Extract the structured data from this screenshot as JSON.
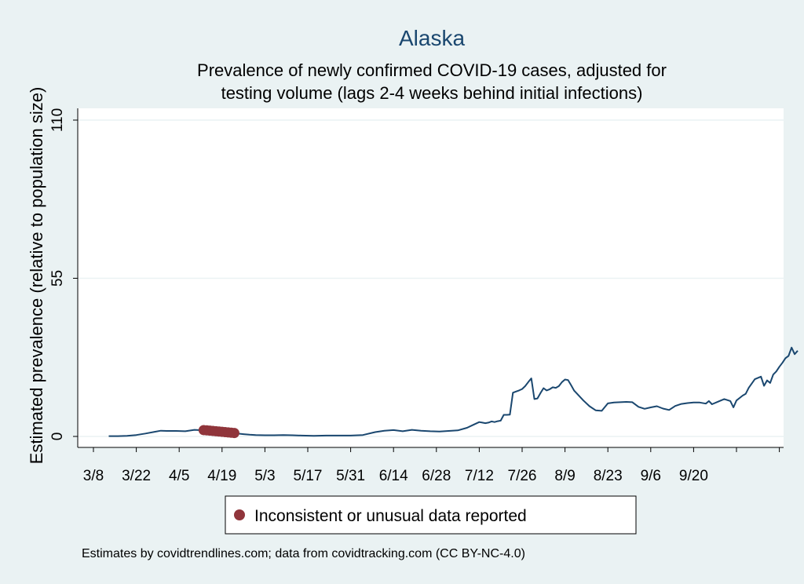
{
  "chart_data": {
    "type": "line",
    "title": "Alaska",
    "subtitle_lines": [
      "Prevalence of newly confirmed COVID-19 cases, adjusted for",
      "testing volume (lags 2-4 weeks behind initial infections)"
    ],
    "ylabel": "Estimated prevalence (relative to population size)",
    "xlabel": "",
    "ylim": [
      0,
      110
    ],
    "yticks": [
      0,
      55,
      110
    ],
    "ytick_labels": [
      "0",
      "55",
      "110"
    ],
    "xlim": [
      0,
      234
    ],
    "xticks": [
      0,
      14,
      28,
      42,
      56,
      70,
      84,
      98,
      112,
      126,
      140,
      154,
      168,
      182,
      196,
      210,
      224
    ],
    "xtick_labels": [
      "3/8",
      "3/22",
      "4/5",
      "4/19",
      "5/3",
      "5/17",
      "5/31",
      "6/14",
      "6/28",
      "7/12",
      "7/26",
      "8/9",
      "8/23",
      "9/6",
      "9/20",
      "",
      ""
    ],
    "grid": true,
    "series": [
      {
        "name": "Alaska",
        "color": "#1a476f",
        "x": [
          5,
          8,
          11,
          14,
          17,
          20,
          22,
          24,
          27,
          30,
          33,
          36,
          38,
          41,
          43,
          45,
          47,
          49,
          51,
          53,
          56,
          59,
          62,
          65,
          68,
          72,
          76,
          80,
          84,
          88,
          92,
          95,
          98,
          101,
          104,
          107,
          110,
          113,
          116,
          119,
          122,
          124,
          126,
          127,
          128,
          129,
          130,
          131,
          132,
          133,
          134,
          135,
          136,
          137,
          138,
          139,
          140,
          141,
          142,
          143,
          144,
          145,
          146,
          147,
          148,
          149,
          150,
          151,
          152,
          153,
          154,
          155,
          156,
          157,
          158,
          160,
          162,
          164,
          166,
          168,
          170,
          172,
          174,
          176,
          178,
          180,
          182,
          184,
          186,
          188,
          190,
          192,
          194,
          196,
          198,
          200,
          201,
          202,
          204,
          206,
          208,
          209,
          210,
          212,
          213,
          214,
          216,
          218,
          219,
          220,
          221,
          222,
          223,
          224,
          225,
          226,
          227,
          228,
          229,
          230
        ],
        "values": [
          0.1,
          0.1,
          0.2,
          0.5,
          1.0,
          1.6,
          2.0,
          1.9,
          1.9,
          1.8,
          2.3,
          2.1,
          2.0,
          1.8,
          1.5,
          1.2,
          1.0,
          0.8,
          0.6,
          0.5,
          0.4,
          0.4,
          0.5,
          0.4,
          0.3,
          0.2,
          0.3,
          0.3,
          0.3,
          0.5,
          1.5,
          2.0,
          2.2,
          1.8,
          2.3,
          2.0,
          1.8,
          1.7,
          1.9,
          2.1,
          3.0,
          4.0,
          5.0,
          4.8,
          4.6,
          4.8,
          5.2,
          5.0,
          5.3,
          5.5,
          7.5,
          7.5,
          7.6,
          15.2,
          15.6,
          16.0,
          16.5,
          17.5,
          18.9,
          20.2,
          13.0,
          13.2,
          15.1,
          16.8,
          16.0,
          16.4,
          17.1,
          16.9,
          17.5,
          18.9,
          19.8,
          19.6,
          17.8,
          15.9,
          14.8,
          12.5,
          10.5,
          9.1,
          8.9,
          11.5,
          11.8,
          11.9,
          12.0,
          11.9,
          10.3,
          9.6,
          10.1,
          10.5,
          9.7,
          9.2,
          10.6,
          11.3,
          11.6,
          11.8,
          11.8,
          11.4,
          12.3,
          11.2,
          12.1,
          13.0,
          12.3,
          10.1,
          12.5,
          14.2,
          14.8,
          16.9,
          19.9,
          20.8,
          17.6,
          19.5,
          18.6,
          21.5,
          22.6,
          24.2,
          25.6,
          27.2,
          28.0,
          30.9,
          28.6,
          29.8
        ]
      }
    ],
    "annotation_series": {
      "name": "Inconsistent or unusual data reported",
      "color": "#90353b",
      "x": [
        36,
        37,
        38,
        39,
        40,
        41,
        42,
        43,
        44,
        45,
        46
      ],
      "values": [
        2.2,
        2.1,
        2.0,
        1.9,
        1.8,
        1.7,
        1.6,
        1.5,
        1.4,
        1.3,
        1.2
      ]
    },
    "legend": {
      "entries": [
        "Inconsistent or unusual data reported"
      ],
      "placement": "bottom"
    }
  },
  "footer": "Estimates by covidtrendlines.com; data from covidtracking.com (CC BY-NC-4.0)",
  "colors": {
    "background": "#eaf2f3",
    "plot_background": "#ffffff",
    "line": "#1a476f",
    "marker": "#90353b",
    "grid": "#eaf2f3"
  }
}
